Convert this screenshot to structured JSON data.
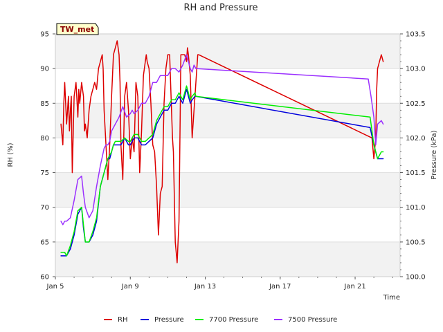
{
  "chart_data": {
    "type": "line",
    "title": "RH and Pressure",
    "site_label": "TW_met",
    "xlabel": "Time",
    "ylabel": "RH (%)",
    "y2label": "Pressure (kPa)",
    "x_unit": "day of January",
    "xlim": [
      5,
      23.4
    ],
    "ylim": [
      60,
      95
    ],
    "y2lim": [
      100.0,
      103.5
    ],
    "x_ticks": [
      {
        "value": 5,
        "label": "Jan 5"
      },
      {
        "value": 9,
        "label": "Jan 9"
      },
      {
        "value": 13,
        "label": "Jan 13"
      },
      {
        "value": 17,
        "label": "Jan 17"
      },
      {
        "value": 21,
        "label": "Jan 21"
      }
    ],
    "y_ticks": [
      60,
      65,
      70,
      75,
      80,
      85,
      90,
      95
    ],
    "y2_ticks": [
      {
        "value": 100.0,
        "label": "100.0"
      },
      {
        "value": 100.5,
        "label": "100.5"
      },
      {
        "value": 101.0,
        "label": "101.0"
      },
      {
        "value": 101.5,
        "label": "101.5"
      },
      {
        "value": 102.0,
        "label": "102.0"
      },
      {
        "value": 102.5,
        "label": "102.5"
      },
      {
        "value": 103.0,
        "label": "103.0"
      },
      {
        "value": 103.5,
        "label": "103.5"
      }
    ],
    "grid": true,
    "legend_position": "bottom",
    "series": [
      {
        "name": "RH",
        "color": "#dd0000",
        "axis": "left",
        "x": [
          5.3,
          5.4,
          5.45,
          5.5,
          5.6,
          5.7,
          5.75,
          5.8,
          5.85,
          5.9,
          6.0,
          6.1,
          6.2,
          6.25,
          6.3,
          6.4,
          6.5,
          6.55,
          6.6,
          6.7,
          6.8,
          6.9,
          7.0,
          7.1,
          7.2,
          7.3,
          7.4,
          7.5,
          7.55,
          7.6,
          7.7,
          7.8,
          7.9,
          8.0,
          8.1,
          8.2,
          8.3,
          8.4,
          8.45,
          8.5,
          8.6,
          8.7,
          8.8,
          8.9,
          9.0,
          9.1,
          9.2,
          9.3,
          9.4,
          9.5,
          9.6,
          9.7,
          9.8,
          9.85,
          9.9,
          10.0,
          10.1,
          10.2,
          10.3,
          10.4,
          10.5,
          10.6,
          10.7,
          10.8,
          10.9,
          11.0,
          11.1,
          11.2,
          11.25,
          11.3,
          11.4,
          11.5,
          11.6,
          11.7,
          11.8,
          11.9,
          12.0,
          12.05,
          12.1,
          12.2,
          12.3,
          12.4,
          12.5,
          12.6,
          12.65,
          21.9,
          22.0,
          22.1,
          22.15,
          22.2,
          22.3,
          22.4,
          22.5
        ],
        "values": [
          82,
          79,
          85,
          88,
          82,
          86,
          81,
          84,
          86,
          75,
          86,
          88,
          83,
          87,
          85,
          88,
          86,
          81,
          82,
          80,
          84,
          86,
          87,
          88,
          87,
          90,
          91,
          92,
          90,
          84,
          79,
          74,
          79,
          86,
          92,
          93,
          94,
          92,
          88,
          79,
          74,
          86,
          88,
          84,
          77,
          80,
          78,
          88,
          86,
          75,
          81,
          89,
          91,
          92,
          91,
          90,
          85,
          79,
          78,
          73,
          66,
          72,
          73,
          85,
          90,
          92,
          92,
          84,
          80,
          78,
          65,
          62,
          68,
          92,
          92,
          92,
          91,
          93,
          92,
          89,
          80,
          84,
          88,
          92,
          92,
          80,
          77,
          80,
          87,
          90,
          91,
          92,
          91
        ],
        "__gap_after_index": 84
      },
      {
        "name": "Pressure",
        "color": "#0000dd",
        "axis": "right",
        "x": [
          5.3,
          5.5,
          5.6,
          5.8,
          6.0,
          6.2,
          6.4,
          6.5,
          6.6,
          6.8,
          7.0,
          7.2,
          7.4,
          7.6,
          7.7,
          7.8,
          7.9,
          8.0,
          8.1,
          8.2,
          8.3,
          8.5,
          8.7,
          8.9,
          9.0,
          9.2,
          9.4,
          9.6,
          9.8,
          10.0,
          10.2,
          10.4,
          10.6,
          10.8,
          11.0,
          11.2,
          11.4,
          11.6,
          11.8,
          12.0,
          12.2,
          12.3,
          12.45,
          12.5,
          21.8,
          22.0,
          22.2,
          22.4,
          22.5
        ],
        "values": [
          100.3,
          100.3,
          100.3,
          100.4,
          100.6,
          100.9,
          101.0,
          100.7,
          100.5,
          100.5,
          100.6,
          100.8,
          101.3,
          101.5,
          101.6,
          101.7,
          101.7,
          101.8,
          101.9,
          101.9,
          101.9,
          101.9,
          102.0,
          101.9,
          101.9,
          102.0,
          102.0,
          101.9,
          101.9,
          101.95,
          102.0,
          102.2,
          102.3,
          102.4,
          102.4,
          102.5,
          102.5,
          102.6,
          102.5,
          102.7,
          102.5,
          102.55,
          102.6,
          102.6,
          102.15,
          101.9,
          101.7,
          101.7,
          101.7
        ]
      },
      {
        "name": "7700 Pressure",
        "color": "#00ee00",
        "axis": "right",
        "x": [
          5.3,
          5.5,
          5.6,
          5.8,
          6.0,
          6.2,
          6.4,
          6.5,
          6.6,
          6.8,
          7.0,
          7.2,
          7.4,
          7.6,
          7.7,
          7.8,
          7.9,
          8.0,
          8.1,
          8.2,
          8.3,
          8.5,
          8.7,
          8.9,
          9.0,
          9.2,
          9.4,
          9.6,
          9.8,
          10.0,
          10.2,
          10.4,
          10.6,
          10.8,
          11.0,
          11.2,
          11.4,
          11.6,
          11.8,
          12.0,
          12.2,
          12.3,
          12.45,
          12.5,
          21.8,
          22.0,
          22.2,
          22.4,
          22.5
        ],
        "values": [
          100.35,
          100.35,
          100.3,
          100.45,
          100.65,
          100.95,
          101.0,
          100.75,
          100.5,
          100.5,
          100.65,
          100.85,
          101.3,
          101.5,
          101.6,
          101.7,
          101.75,
          101.8,
          101.9,
          101.95,
          101.95,
          101.95,
          102.0,
          101.95,
          101.95,
          102.05,
          102.05,
          101.95,
          101.95,
          102.0,
          102.05,
          102.25,
          102.35,
          102.45,
          102.45,
          102.55,
          102.55,
          102.65,
          102.55,
          102.75,
          102.55,
          102.6,
          102.65,
          102.6,
          102.3,
          101.9,
          101.7,
          101.8,
          101.8
        ]
      },
      {
        "name": "7500 Pressure",
        "color": "#9b30ff",
        "axis": "right",
        "x": [
          5.3,
          5.4,
          5.5,
          5.6,
          5.8,
          6.0,
          6.2,
          6.4,
          6.5,
          6.6,
          6.8,
          7.0,
          7.2,
          7.4,
          7.6,
          7.7,
          7.8,
          7.9,
          8.0,
          8.2,
          8.4,
          8.6,
          8.8,
          9.0,
          9.1,
          9.2,
          9.4,
          9.6,
          9.8,
          10.0,
          10.2,
          10.4,
          10.6,
          10.8,
          11.0,
          11.2,
          11.4,
          11.6,
          11.8,
          12.0,
          12.2,
          12.3,
          12.4,
          12.5,
          21.7,
          21.85,
          22.0,
          22.1,
          22.2,
          22.4,
          22.5
        ],
        "values": [
          100.8,
          100.75,
          100.8,
          100.8,
          100.85,
          101.1,
          101.4,
          101.45,
          101.2,
          101.0,
          100.85,
          100.95,
          101.3,
          101.6,
          101.85,
          101.9,
          101.9,
          101.95,
          102.1,
          102.2,
          102.3,
          102.45,
          102.3,
          102.35,
          102.4,
          102.35,
          102.4,
          102.5,
          102.5,
          102.6,
          102.8,
          102.8,
          102.9,
          102.9,
          102.9,
          103.0,
          103.0,
          102.95,
          103.05,
          103.2,
          103.0,
          102.95,
          103.05,
          103.0,
          102.85,
          102.6,
          102.3,
          101.9,
          102.2,
          102.25,
          102.2
        ]
      }
    ]
  }
}
